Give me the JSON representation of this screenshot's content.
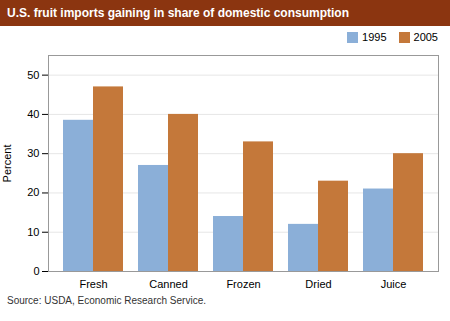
{
  "chart_data": {
    "type": "bar",
    "title": "U.S. fruit imports gaining in share of domestic consumption",
    "ylabel": "Percent",
    "categories": [
      "Fresh",
      "Canned",
      "Frozen",
      "Dried",
      "Juice"
    ],
    "series": [
      {
        "name": "1995",
        "color": "#8BAFD8",
        "values": [
          38.5,
          27.0,
          14.0,
          12.0,
          21.0
        ]
      },
      {
        "name": "2005",
        "color": "#C4783A",
        "values": [
          47.0,
          40.0,
          33.0,
          23.0,
          30.0
        ]
      }
    ],
    "ylim": [
      0,
      55
    ],
    "yticks": [
      0,
      10,
      20,
      30,
      40,
      50
    ],
    "grid": true,
    "legend": "upper right",
    "annotations": [
      "Source: USDA, Economic Research Service."
    ]
  }
}
